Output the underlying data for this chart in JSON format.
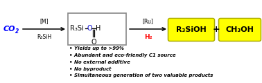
{
  "bg_color": "#ffffff",
  "co2_color": "#0000ff",
  "arrow1_top": "[M]",
  "arrow1_bot": "R₃SiH",
  "arrow2_top": "[Ru]",
  "arrow2_bot": "H₂",
  "arrow2_bot_color": "#ff0000",
  "box_edge_color": "#888888",
  "formate_o_color": "#0000cc",
  "product_bg": "#ffff00",
  "product_edge": "#aaaa00",
  "product1": "R₃SiOH",
  "product2": "CH₃OH",
  "plus": "+",
  "bullets": [
    "• Yields up to >99%",
    "• Abundant and eco-friendly C1 source",
    "• No external additive",
    "• No byproduct",
    "• Simultaneous generation of two valuable products"
  ],
  "figw": 3.78,
  "figh": 1.2,
  "dpi": 100
}
